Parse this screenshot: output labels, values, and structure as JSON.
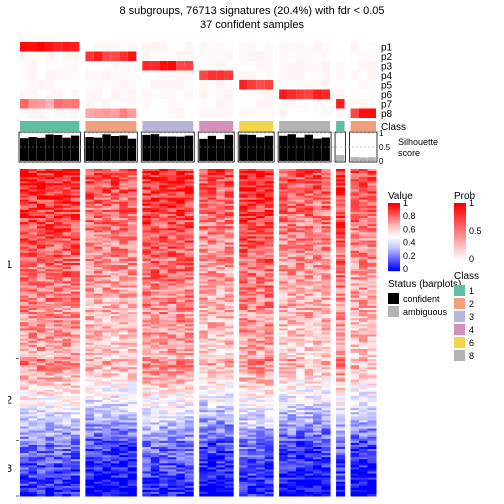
{
  "title_line1": "8 subgroups, 76713 signatures (20.4%) with fdr < 0.05",
  "title_line2": "37 confident samples",
  "fontsize_title": 11,
  "fontsize_label": 10,
  "fontsize_legend": 9,
  "block_gap": 6,
  "groups": [
    {
      "n": 7,
      "class_color": "#5fbfa2"
    },
    {
      "n": 6,
      "class_color": "#f0a07e"
    },
    {
      "n": 6,
      "class_color": "#b7b6d8"
    },
    {
      "n": 4,
      "class_color": "#d48fbb"
    },
    {
      "n": 4,
      "class_color": "#f3d54a"
    },
    {
      "n": 6,
      "class_color": "#b3b3b3"
    },
    {
      "n": 1,
      "class_color": "#5fbfa2"
    },
    {
      "n": 3,
      "class_color": "#f0a07e"
    }
  ],
  "prob_rows": [
    "p1",
    "p2",
    "p3",
    "p4",
    "p5",
    "p6",
    "p7",
    "p8"
  ],
  "prob_colors_low": "#ffffff",
  "prob_colors_high": "#ff0000",
  "silhouette_label": "Silhouette\nscore",
  "silhouette_ticks": [
    "0",
    "0.5",
    "1"
  ],
  "silhouette_confident_color": "#000000",
  "silhouette_ambiguous_color": "#b3b3b3",
  "heatmap_row_sections": [
    "1",
    "2",
    "3"
  ],
  "heatmap_section_fracs": [
    0.58,
    0.25,
    0.17
  ],
  "value_ticks": [
    "0",
    "0.2",
    "0.4",
    "0.6",
    "0.8",
    "1"
  ],
  "value_cmap": [
    "#0000ff",
    "#6060ff",
    "#c0c0ff",
    "#ffffff",
    "#ffc0c0",
    "#ff6060",
    "#ff0000"
  ],
  "legends": {
    "value": {
      "title": "Value",
      "ticks": [
        "0",
        "0.2",
        "0.4",
        "0.6",
        "0.8",
        "1"
      ]
    },
    "prob": {
      "title": "Prob",
      "ticks": [
        "0",
        "0.5",
        "1"
      ]
    },
    "status": {
      "title": "Status (barplots)",
      "items": [
        [
          "confident",
          "#000000"
        ],
        [
          "ambiguous",
          "#b3b3b3"
        ]
      ]
    },
    "class": {
      "title": "Class",
      "items": [
        [
          "1",
          "#5fbfa2"
        ],
        [
          "2",
          "#f0a07e"
        ],
        [
          "3",
          "#b7b6d8"
        ],
        [
          "4",
          "#d48fbb"
        ],
        [
          "6",
          "#f3d54a"
        ],
        [
          "8",
          "#b3b3b3"
        ]
      ]
    }
  }
}
